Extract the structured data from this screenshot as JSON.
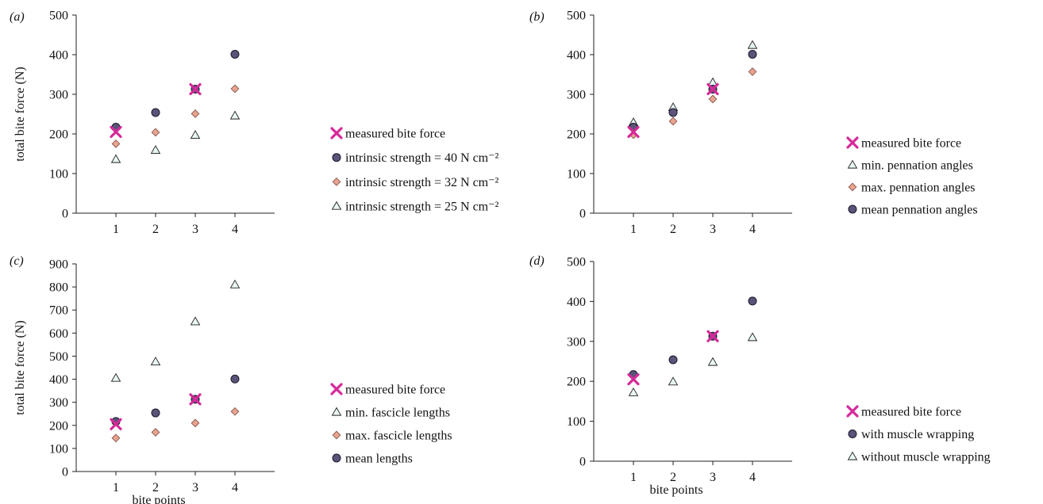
{
  "chart_data": [
    {
      "panel": "(a)",
      "type": "scatter",
      "xlabel": "",
      "ylabel": "total bite force (N)",
      "x": [
        1,
        2,
        3,
        4
      ],
      "xlim": [
        0,
        5
      ],
      "ylim": [
        0,
        500
      ],
      "yticks": [
        0,
        100,
        200,
        300,
        400,
        500
      ],
      "legend_position": "right",
      "series": [
        {
          "name": "measured bite force",
          "marker": "cross",
          "color": "#d6299a",
          "points": [
            [
              1,
              205
            ],
            [
              3,
              313
            ]
          ]
        },
        {
          "name": "intrinsic strength = 40 N cm⁻²",
          "marker": "circle",
          "color": "#5b5379",
          "points": [
            [
              1,
              217
            ],
            [
              2,
              254
            ],
            [
              3,
              313
            ],
            [
              4,
              401
            ]
          ]
        },
        {
          "name": "intrinsic strength = 32 N cm⁻²",
          "marker": "diamond",
          "color": "#e8a38f",
          "points": [
            [
              1,
              175
            ],
            [
              2,
              204
            ],
            [
              3,
              251
            ],
            [
              4,
              314
            ]
          ]
        },
        {
          "name": "intrinsic strength = 25 N cm⁻²",
          "marker": "triangle",
          "color": "#e8f6f4",
          "points": [
            [
              1,
              136
            ],
            [
              2,
              159
            ],
            [
              3,
              197
            ],
            [
              4,
              246
            ]
          ]
        }
      ]
    },
    {
      "panel": "(b)",
      "type": "scatter",
      "xlabel": "",
      "ylabel": "",
      "x": [
        1,
        2,
        3,
        4
      ],
      "xlim": [
        0,
        5
      ],
      "ylim": [
        0,
        500
      ],
      "yticks": [
        0,
        100,
        200,
        300,
        400,
        500
      ],
      "legend_position": "right",
      "series": [
        {
          "name": "measured bite force",
          "marker": "cross",
          "color": "#d6299a",
          "points": [
            [
              1,
              205
            ],
            [
              3,
              313
            ]
          ]
        },
        {
          "name": "min. pennation angles",
          "marker": "triangle",
          "color": "#e8f6f4",
          "points": [
            [
              1,
              229
            ],
            [
              2,
              267
            ],
            [
              3,
              330
            ],
            [
              4,
              424
            ]
          ]
        },
        {
          "name": "max. pennation angles",
          "marker": "diamond",
          "color": "#e8a38f",
          "points": [
            [
              1,
              198
            ],
            [
              2,
              232
            ],
            [
              3,
              288
            ],
            [
              4,
              357
            ]
          ]
        },
        {
          "name": "mean pennation angles",
          "marker": "circle",
          "color": "#5b5379",
          "points": [
            [
              1,
              217
            ],
            [
              2,
              254
            ],
            [
              3,
              313
            ],
            [
              4,
              401
            ]
          ]
        }
      ]
    },
    {
      "panel": "(c)",
      "type": "scatter",
      "xlabel": "bite points",
      "ylabel": "total bite force (N)",
      "x": [
        1,
        2,
        3,
        4
      ],
      "xlim": [
        0,
        5
      ],
      "ylim": [
        0,
        900
      ],
      "yticks": [
        0,
        100,
        200,
        300,
        400,
        500,
        600,
        700,
        800,
        900
      ],
      "legend_position": "right",
      "series": [
        {
          "name": "measured bite force",
          "marker": "cross",
          "color": "#d6299a",
          "points": [
            [
              1,
              205
            ],
            [
              3,
              313
            ]
          ]
        },
        {
          "name": "min. fascicle lengths",
          "marker": "triangle",
          "color": "#e8f6f4",
          "points": [
            [
              1,
              405
            ],
            [
              2,
              476
            ],
            [
              3,
              650
            ],
            [
              4,
              810
            ]
          ]
        },
        {
          "name": "max. fascicle lengths",
          "marker": "diamond",
          "color": "#e8a38f",
          "points": [
            [
              1,
              145
            ],
            [
              2,
              170
            ],
            [
              3,
              210
            ],
            [
              4,
              260
            ]
          ]
        },
        {
          "name": "mean lengths",
          "marker": "circle",
          "color": "#5b5379",
          "points": [
            [
              1,
              217
            ],
            [
              2,
              254
            ],
            [
              3,
              313
            ],
            [
              4,
              401
            ]
          ]
        }
      ]
    },
    {
      "panel": "(d)",
      "type": "scatter",
      "xlabel": "bite points",
      "ylabel": "",
      "x": [
        1,
        2,
        3,
        4
      ],
      "xlim": [
        0,
        5
      ],
      "ylim": [
        0,
        500
      ],
      "yticks": [
        0,
        100,
        200,
        300,
        400,
        500
      ],
      "legend_position": "right",
      "series": [
        {
          "name": "measured bite force",
          "marker": "cross",
          "color": "#d6299a",
          "points": [
            [
              1,
              205
            ],
            [
              3,
              313
            ]
          ]
        },
        {
          "name": "with muscle wrapping",
          "marker": "circle",
          "color": "#5b5379",
          "points": [
            [
              1,
              217
            ],
            [
              2,
              254
            ],
            [
              3,
              313
            ],
            [
              4,
              401
            ]
          ]
        },
        {
          "name": "without muscle wrapping",
          "marker": "triangle",
          "color": "#e8f6f4",
          "points": [
            [
              1,
              172
            ],
            [
              2,
              199
            ],
            [
              3,
              248
            ],
            [
              4,
              310
            ]
          ]
        }
      ]
    }
  ]
}
